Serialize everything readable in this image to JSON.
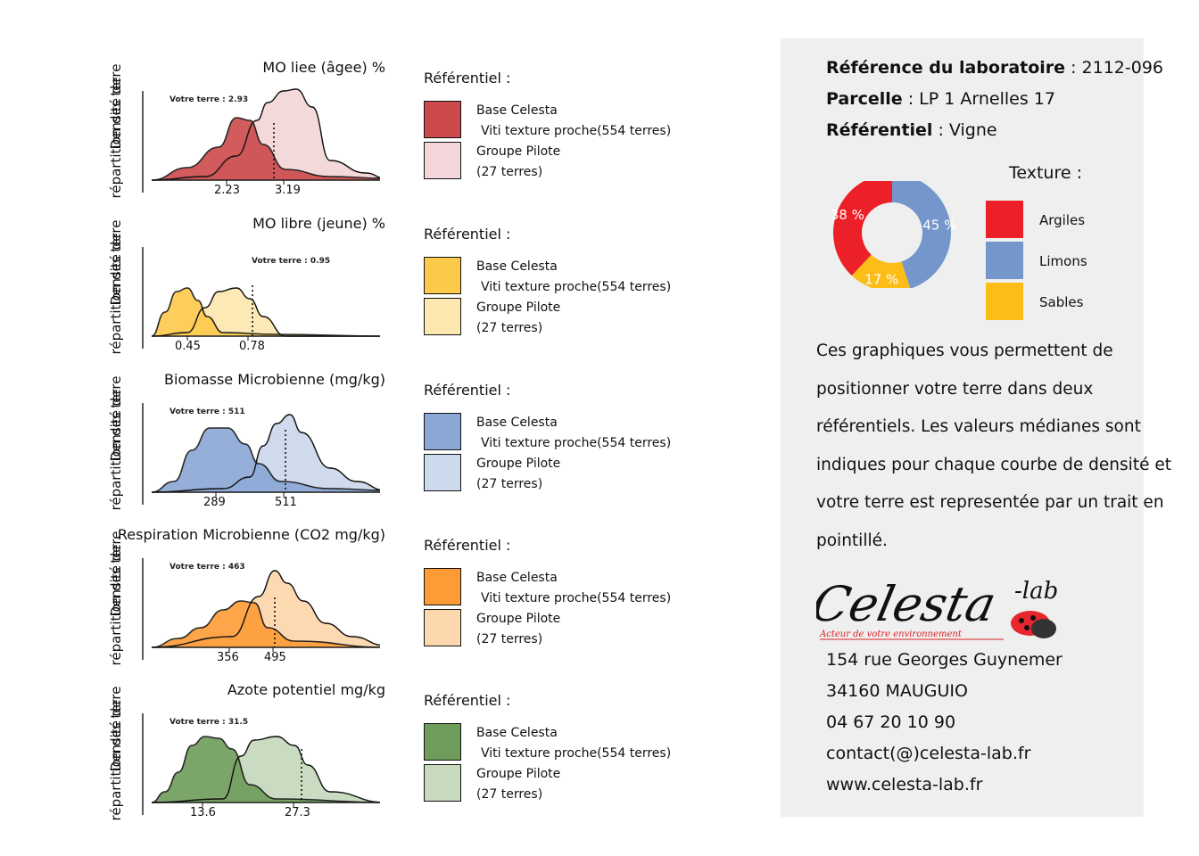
{
  "y_axis_label_line1": "Densité de",
  "y_axis_label_line2": "répartition des terre",
  "votre_label": "Votre",
  "terre_label": "terre",
  "legend": {
    "title": "Référentiel :",
    "base_line1": "Base Celesta",
    "base_line2": "Viti texture proche(554 terres)",
    "pilote_line1": "Groupe Pilote",
    "pilote_line2": "(27 terres)"
  },
  "panels": [
    {
      "title": "MO liee (âgee) %",
      "votre_value": ": 2.93",
      "median_base": "2.23",
      "median_pilote": "3.19"
    },
    {
      "title": "MO libre (jeune) %",
      "votre_value": ": 0.95",
      "median_base": "0.45",
      "median_pilote": "0.78"
    },
    {
      "title": "Biomasse Microbienne (mg/kg)",
      "votre_value": ": 511",
      "median_base": "289",
      "median_pilote": "511"
    },
    {
      "title": "Respiration Microbienne (CO2 mg/kg)",
      "votre_value": ": 463",
      "median_base": "356",
      "median_pilote": "495"
    },
    {
      "title": "Azote potentiel mg/kg",
      "votre_value": ": 31.5",
      "median_base": "13.6",
      "median_pilote": "27.3"
    }
  ],
  "chart_data": [
    {
      "type": "area",
      "title": "MO liee (âgee) %",
      "xlabel": "",
      "ylabel": "Densité de répartition des terre",
      "series": [
        {
          "name": "Base Celesta",
          "median": 2.23,
          "color": "#cd4a4c"
        },
        {
          "name": "Groupe Pilote",
          "median": 3.19,
          "color": "#f4d7da"
        }
      ],
      "votre_terre": 2.93
    },
    {
      "type": "area",
      "title": "MO libre (jeune) %",
      "xlabel": "",
      "ylabel": "Densité de répartition des terre",
      "series": [
        {
          "name": "Base Celesta",
          "median": 0.45,
          "color": "#fdc94a"
        },
        {
          "name": "Groupe Pilote",
          "median": 0.78,
          "color": "#fde8b2"
        }
      ],
      "votre_terre": 0.95
    },
    {
      "type": "area",
      "title": "Biomasse Microbienne (mg/kg)",
      "xlabel": "",
      "ylabel": "Densité de répartition des terre",
      "series": [
        {
          "name": "Base Celesta",
          "median": 289,
          "color": "#8aa7d5"
        },
        {
          "name": "Groupe Pilote",
          "median": 511,
          "color": "#cdd9ec"
        }
      ],
      "votre_terre": 511
    },
    {
      "type": "area",
      "title": "Respiration Microbienne (CO2 mg/kg)",
      "xlabel": "",
      "ylabel": "Densité de répartition des terre",
      "series": [
        {
          "name": "Base Celesta",
          "median": 356,
          "color": "#fd9c35"
        },
        {
          "name": "Groupe Pilote",
          "median": 495,
          "color": "#fdd7ad"
        }
      ],
      "votre_terre": 463
    },
    {
      "type": "area",
      "title": "Azote potentiel mg/kg",
      "xlabel": "",
      "ylabel": "Densité de répartition des terre",
      "series": [
        {
          "name": "Base Celesta",
          "median": 13.6,
          "color": "#6e9c5a"
        },
        {
          "name": "Groupe Pilote",
          "median": 27.3,
          "color": "#c7dabd"
        }
      ],
      "votre_terre": 31.5
    },
    {
      "type": "pie",
      "title": "Texture :",
      "categories": [
        "Argiles",
        "Limons",
        "Sables"
      ],
      "values": [
        38,
        45,
        17
      ],
      "value_labels": [
        "38 %",
        "45 %",
        "17 %"
      ],
      "colors": [
        "#ec2028",
        "#7496cb",
        "#fdbd17"
      ]
    }
  ],
  "info": {
    "ref_label": "Référence du laboratoire",
    "ref_value": " : 2112-096",
    "parcelle_label": "Parcelle",
    "parcelle_value": " : LP 1  Arnelles 17",
    "referentiel_label": "Référentiel",
    "referentiel_value": " : Vigne"
  },
  "texture_title": "Texture :",
  "texture_legend": [
    "Argiles",
    "Limons",
    "Sables"
  ],
  "description": "Ces graphiques vous permettent de positionner votre terre dans deux référentiels. Les valeurs médianes sont indiques pour chaque courbe de densité et votre terre est representée par un trait en pointillé.",
  "logo": {
    "name": "Celesta",
    "suffix": "-lab",
    "tagline": "Acteur de votre environnement"
  },
  "address": {
    "street": "154 rue Georges Guynemer",
    "city": "34160 MAUGUIO",
    "phone": "04 67 20 10 90",
    "email": "contact(@)celesta-lab.fr",
    "web": "www.celesta-lab.fr"
  }
}
